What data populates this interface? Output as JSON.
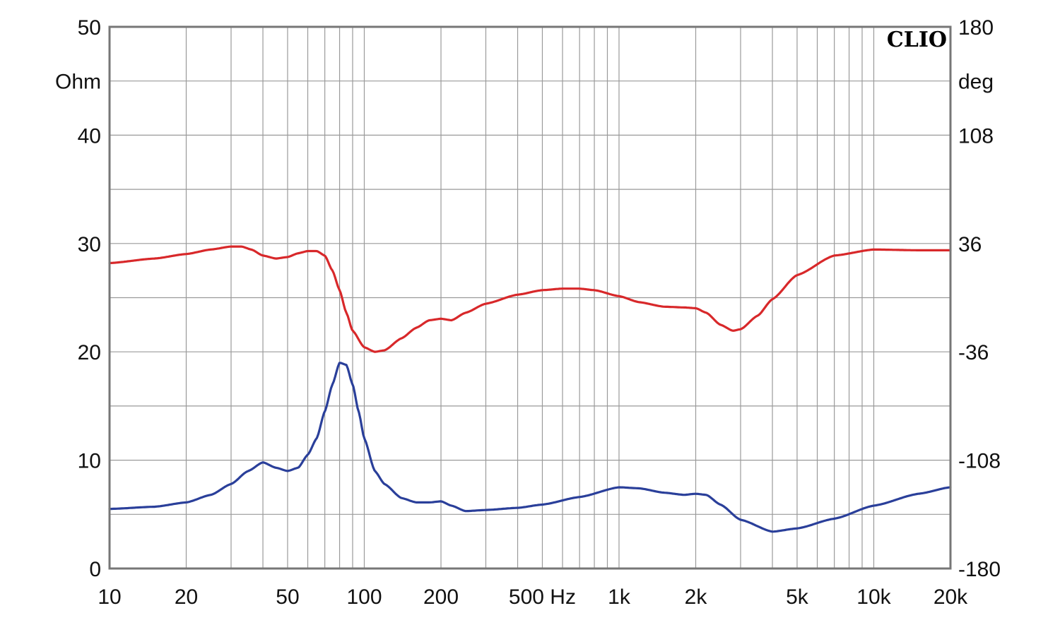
{
  "chart_data": {
    "type": "line",
    "brand": "CLIO",
    "x_scale": "log",
    "xlim": [
      10,
      20000
    ],
    "x_tick_labels": [
      {
        "value": 10,
        "label": "10"
      },
      {
        "value": 20,
        "label": "20"
      },
      {
        "value": 50,
        "label": "50"
      },
      {
        "value": 100,
        "label": "100"
      },
      {
        "value": 200,
        "label": "200"
      },
      {
        "value": 500,
        "label": "500 Hz"
      },
      {
        "value": 1000,
        "label": "1k"
      },
      {
        "value": 2000,
        "label": "2k"
      },
      {
        "value": 5000,
        "label": "5k"
      },
      {
        "value": 10000,
        "label": "10k"
      },
      {
        "value": 20000,
        "label": "20k"
      }
    ],
    "y_left": {
      "unit": "Ohm",
      "ylim": [
        0,
        50
      ],
      "ticks": [
        "0",
        "10",
        "20",
        "30",
        "40",
        "50"
      ]
    },
    "y_right": {
      "unit": "deg",
      "ylim": [
        -180,
        180
      ],
      "ticks": [
        "-180",
        "-108",
        "-36",
        "36",
        "108",
        "180"
      ]
    },
    "grid": true,
    "colors": {
      "impedance": "#2a3f9a",
      "phase": "#d8282a",
      "grid": "#9a9a9a",
      "frame": "#777777"
    },
    "series": [
      {
        "axis": "left",
        "color": "#2a3f9a",
        "x": [
          10,
          15,
          20,
          25,
          30,
          35,
          40,
          45,
          50,
          55,
          60,
          65,
          70,
          75,
          80,
          85,
          90,
          95,
          100,
          110,
          120,
          140,
          160,
          180,
          200,
          220,
          250,
          300,
          400,
          500,
          700,
          1000,
          1200,
          1500,
          1800,
          2000,
          2200,
          2500,
          3000,
          4000,
          5000,
          7000,
          10000,
          15000,
          20000
        ],
        "y": [
          5.5,
          5.7,
          6.1,
          6.8,
          7.8,
          9.0,
          9.8,
          9.3,
          9.0,
          9.3,
          10.5,
          12.0,
          14.5,
          17.0,
          19.0,
          18.8,
          17.0,
          14.5,
          12.0,
          9.0,
          7.8,
          6.5,
          6.1,
          6.1,
          6.2,
          5.8,
          5.3,
          5.4,
          5.6,
          5.9,
          6.6,
          7.5,
          7.4,
          7.0,
          6.8,
          6.9,
          6.8,
          5.9,
          4.5,
          3.4,
          3.7,
          4.6,
          5.8,
          6.9,
          7.5
        ]
      },
      {
        "axis": "right",
        "color": "#d8282a",
        "x": [
          10,
          15,
          20,
          25,
          30,
          33,
          36,
          40,
          45,
          50,
          55,
          60,
          65,
          70,
          75,
          80,
          85,
          90,
          100,
          110,
          120,
          140,
          160,
          180,
          200,
          220,
          250,
          300,
          400,
          500,
          600,
          700,
          800,
          1000,
          1200,
          1500,
          1800,
          2000,
          2200,
          2500,
          2800,
          3000,
          3500,
          4000,
          5000,
          7000,
          10000,
          15000,
          20000
        ],
        "y": [
          23,
          26,
          29,
          32,
          34,
          34,
          32,
          28,
          26,
          27,
          29.5,
          31,
          31,
          28,
          18,
          5,
          -10,
          -22,
          -33,
          -36,
          -35,
          -27,
          -20,
          -15,
          -14,
          -15,
          -10,
          -4,
          2,
          5,
          6,
          6,
          5,
          1,
          -3,
          -6,
          -6.5,
          -7,
          -10,
          -18,
          -22,
          -21,
          -12,
          -1,
          15,
          28,
          32,
          31.5,
          31.5
        ]
      }
    ]
  }
}
